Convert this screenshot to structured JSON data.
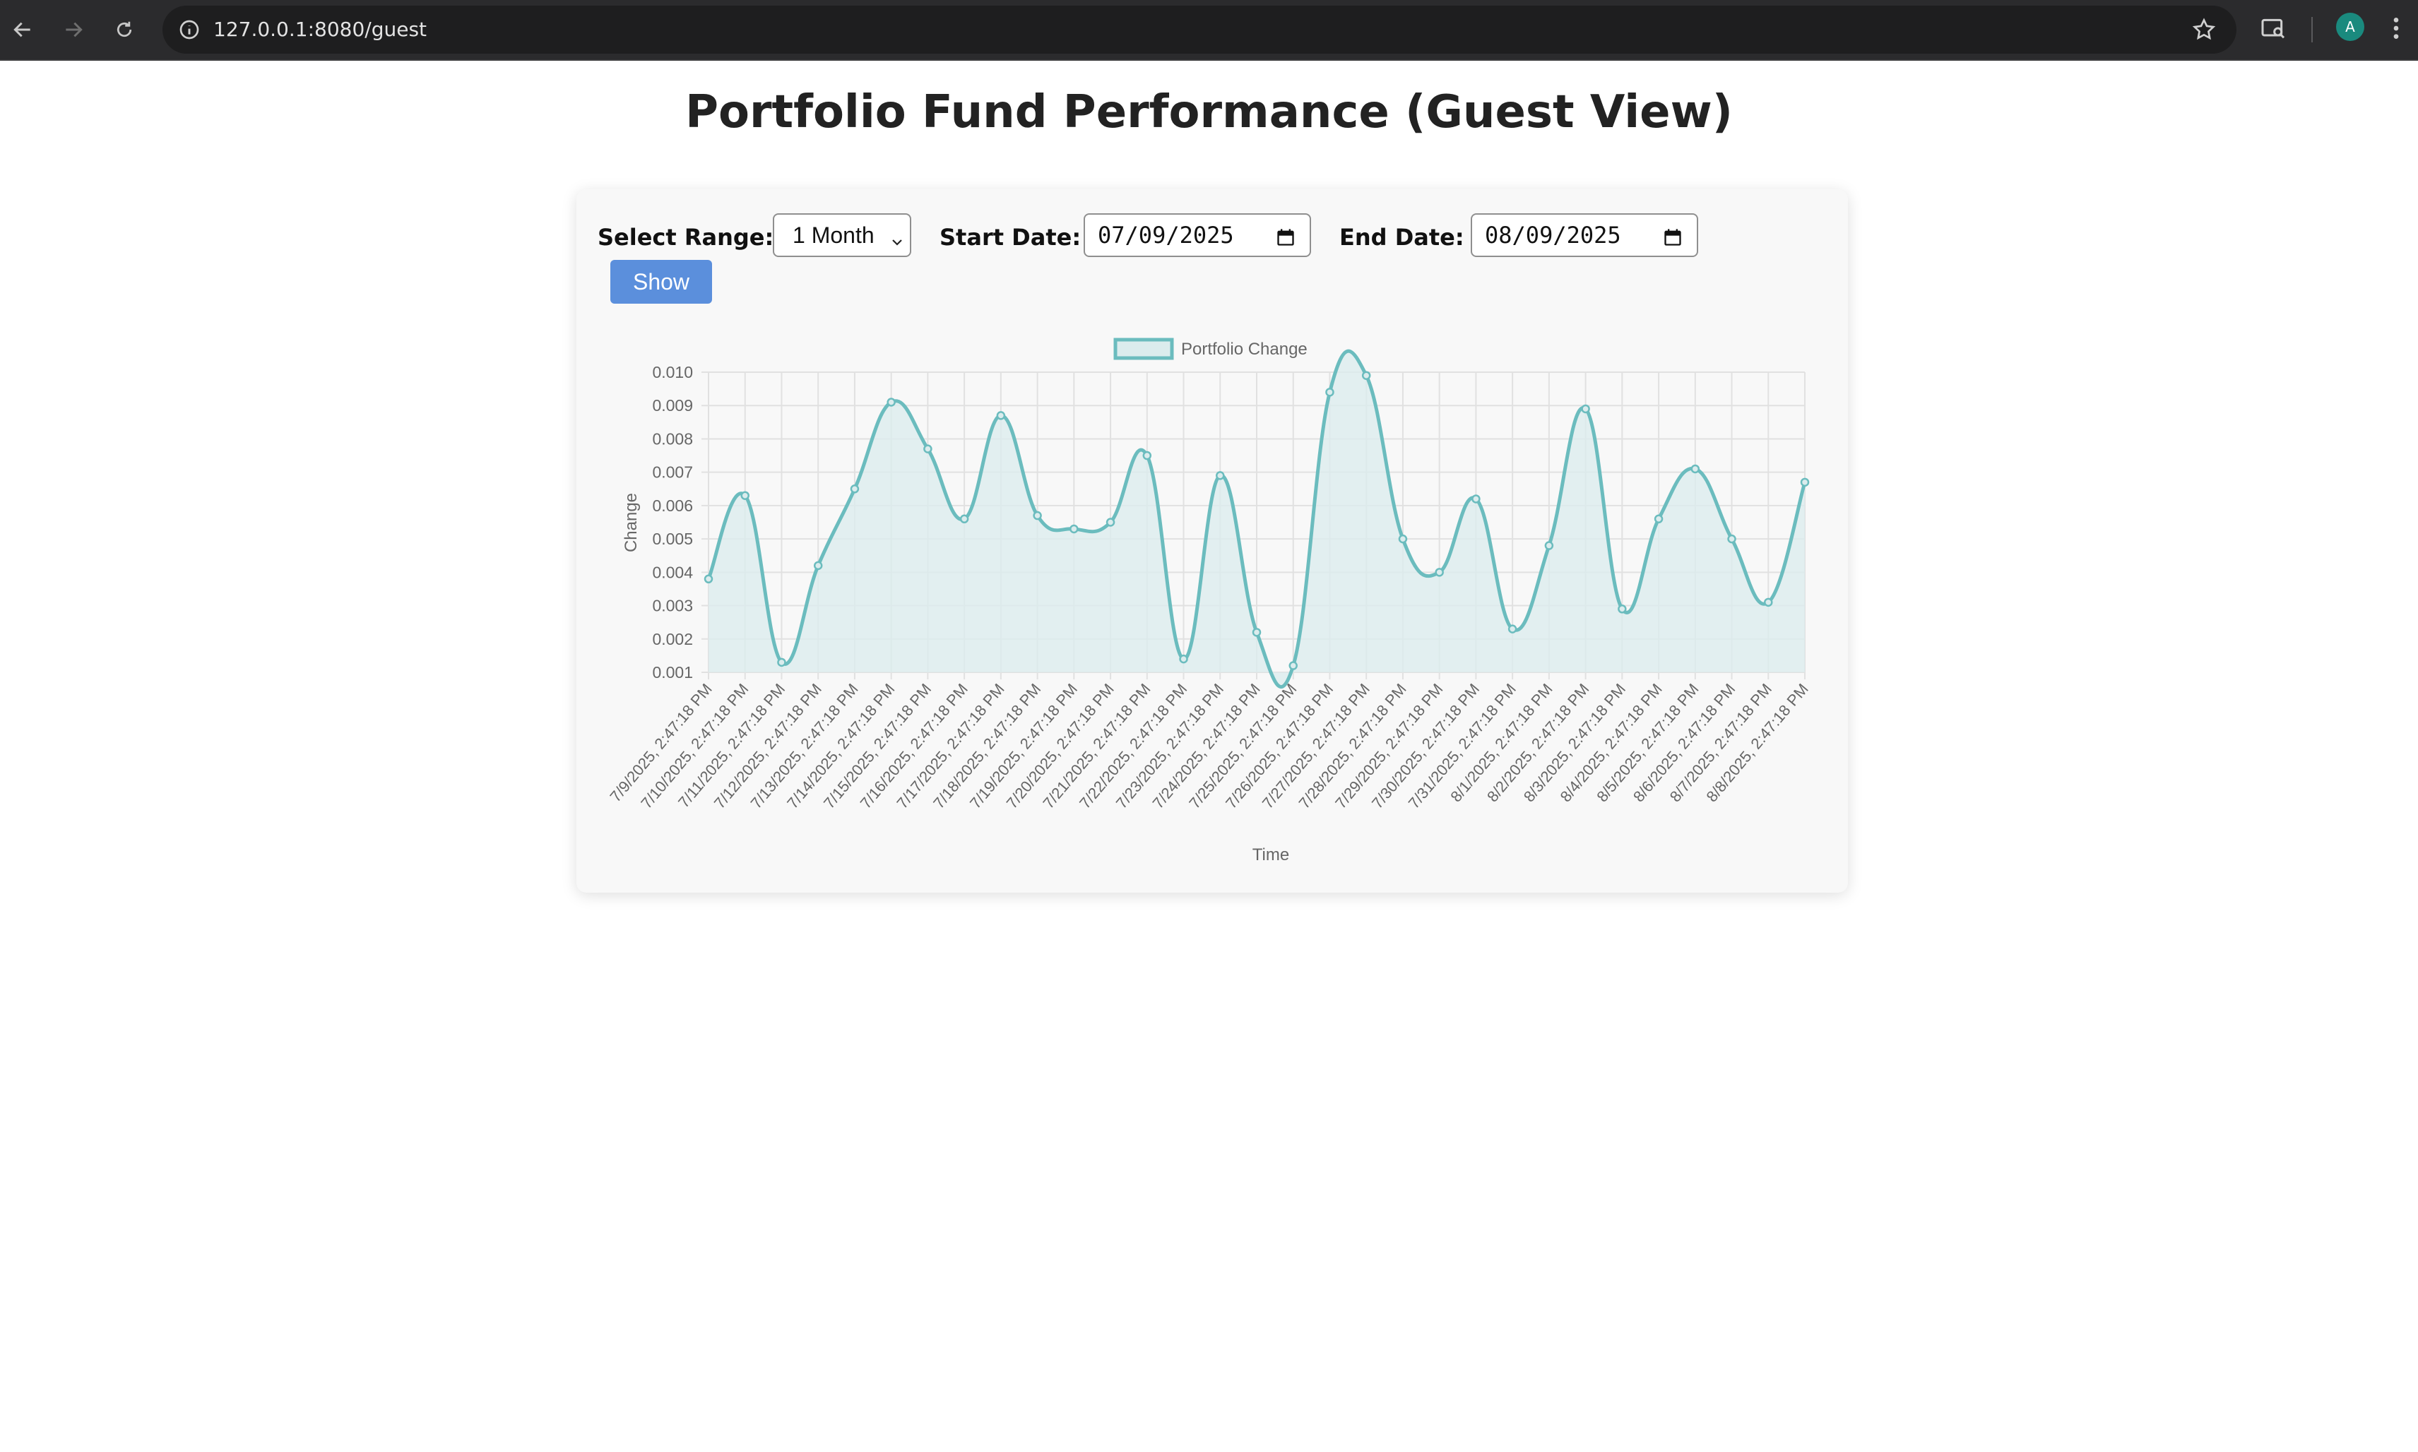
{
  "browser": {
    "url": "127.0.0.1:8080/guest",
    "avatar_letter": "A"
  },
  "page": {
    "title": "Portfolio Fund Performance (Guest View)"
  },
  "controls": {
    "range_label": "Select Range:",
    "range_value": "1 Month",
    "start_label": "Start Date:",
    "start_value": "07/09/2025",
    "end_label": "End Date:",
    "end_value": "08/09/2025",
    "show_label": "Show"
  },
  "colors": {
    "line": "#6bbcbe",
    "fill": "#dbeced",
    "button": "#5b8fdc"
  },
  "chart_data": {
    "type": "line",
    "xlabel": "Time",
    "ylabel": "Change",
    "ylim": [
      0.001,
      0.01
    ],
    "yticks": [
      "0.010",
      "0.009",
      "0.008",
      "0.007",
      "0.006",
      "0.005",
      "0.004",
      "0.003",
      "0.002",
      "0.001"
    ],
    "legend_position": "top",
    "grid": true,
    "filled": true,
    "categories": [
      "7/9/2025, 2:47:18 PM",
      "7/10/2025, 2:47:18 PM",
      "7/11/2025, 2:47:18 PM",
      "7/12/2025, 2:47:18 PM",
      "7/13/2025, 2:47:18 PM",
      "7/14/2025, 2:47:18 PM",
      "7/15/2025, 2:47:18 PM",
      "7/16/2025, 2:47:18 PM",
      "7/17/2025, 2:47:18 PM",
      "7/18/2025, 2:47:18 PM",
      "7/19/2025, 2:47:18 PM",
      "7/20/2025, 2:47:18 PM",
      "7/21/2025, 2:47:18 PM",
      "7/22/2025, 2:47:18 PM",
      "7/23/2025, 2:47:18 PM",
      "7/24/2025, 2:47:18 PM",
      "7/25/2025, 2:47:18 PM",
      "7/26/2025, 2:47:18 PM",
      "7/27/2025, 2:47:18 PM",
      "7/28/2025, 2:47:18 PM",
      "7/29/2025, 2:47:18 PM",
      "7/30/2025, 2:47:18 PM",
      "7/31/2025, 2:47:18 PM",
      "8/1/2025, 2:47:18 PM",
      "8/2/2025, 2:47:18 PM",
      "8/3/2025, 2:47:18 PM",
      "8/4/2025, 2:47:18 PM",
      "8/5/2025, 2:47:18 PM",
      "8/6/2025, 2:47:18 PM",
      "8/7/2025, 2:47:18 PM",
      "8/8/2025, 2:47:18 PM"
    ],
    "series": [
      {
        "name": "Portfolio Change",
        "values": [
          0.0038,
          0.0063,
          0.0013,
          0.0042,
          0.0065,
          0.0091,
          0.0077,
          0.0056,
          0.0087,
          0.0057,
          0.0053,
          0.0055,
          0.0075,
          0.0014,
          0.0069,
          0.0022,
          0.0012,
          0.0094,
          0.0099,
          0.005,
          0.004,
          0.0062,
          0.0023,
          0.0048,
          0.0089,
          0.0029,
          0.0056,
          0.0071,
          0.005,
          0.0031,
          0.0067
        ]
      }
    ]
  }
}
